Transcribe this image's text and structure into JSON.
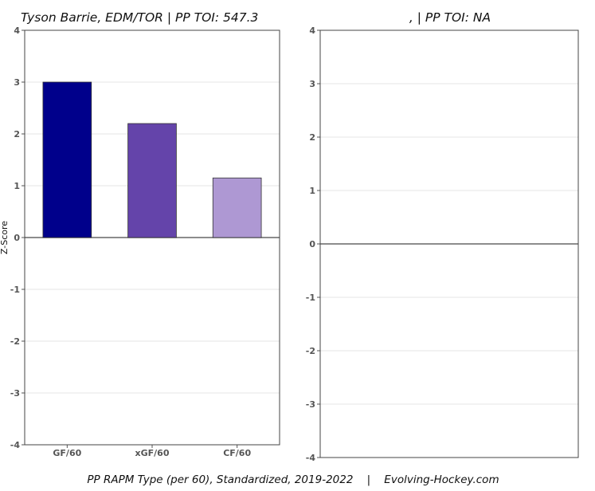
{
  "footer": "PP RAPM Type (per 60), Standardized, 2019-2022    |    Evolving-Hockey.com",
  "chart_data": [
    {
      "type": "bar",
      "title": "Tyson Barrie, EDM/TOR  |  PP TOI: 547.3",
      "ylabel": "Z-Score",
      "xlabel": "",
      "ylim": [
        -4,
        4
      ],
      "yticks": [
        "4",
        "3",
        "2",
        "1",
        "0",
        "-1",
        "-2",
        "-3",
        "-4"
      ],
      "grid": true,
      "categories": [
        "GF/60",
        "xGF/60",
        "CF/60"
      ],
      "values": [
        3.0,
        2.2,
        1.15
      ],
      "colors": [
        "#00008b",
        "#6444aa",
        "#ae98d3"
      ]
    },
    {
      "type": "bar",
      "title": ",   |  PP TOI: NA",
      "ylabel": "",
      "xlabel": "",
      "ylim": [
        -4,
        4
      ],
      "yticks": [
        "4",
        "3",
        "2",
        "1",
        "0",
        "-1",
        "-2",
        "-3",
        "-4"
      ],
      "grid": true,
      "categories": [],
      "values": [],
      "colors": []
    }
  ]
}
